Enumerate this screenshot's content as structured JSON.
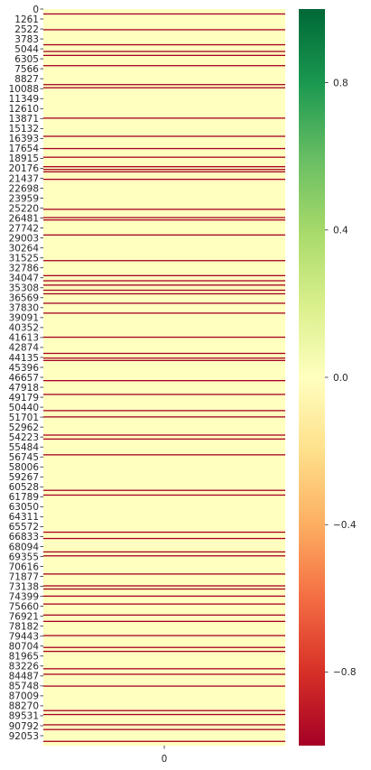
{
  "chart_data": {
    "type": "heatmap",
    "title": "",
    "xlabel": "",
    "ylabel": "",
    "columns": [
      "0"
    ],
    "row_count": 93314,
    "y_tick_step": 1261,
    "y_tick_labels": [
      "0",
      "1261",
      "2522",
      "3783",
      "5044",
      "6305",
      "7566",
      "8827",
      "10088",
      "11349",
      "12610",
      "13871",
      "15132",
      "16393",
      "17654",
      "18915",
      "20176",
      "21437",
      "22698",
      "23959",
      "25220",
      "26481",
      "27742",
      "29003",
      "30264",
      "31525",
      "32786",
      "34047",
      "35308",
      "36569",
      "37830",
      "39091",
      "40352",
      "41613",
      "42874",
      "44135",
      "45396",
      "46657",
      "47918",
      "49179",
      "50440",
      "51701",
      "52962",
      "54223",
      "55484",
      "56745",
      "58006",
      "59267",
      "60528",
      "61789",
      "63050",
      "64311",
      "65572",
      "66833",
      "68094",
      "69355",
      "70616",
      "71877",
      "73138",
      "74399",
      "75660",
      "76921",
      "78182",
      "79443",
      "80704",
      "81965",
      "83226",
      "84487",
      "85748",
      "87009",
      "88270",
      "89531",
      "90792",
      "92053"
    ],
    "background_value": 0.0,
    "colormap": "RdYlGn",
    "vmin": -1.0,
    "vmax": 1.0,
    "colorbar_ticks": [
      {
        "value": 0.8,
        "label": "0.8"
      },
      {
        "value": 0.4,
        "label": "0.4"
      },
      {
        "value": 0.0,
        "label": "0.0"
      },
      {
        "value": -0.4,
        "label": "−0.4"
      },
      {
        "value": -0.8,
        "label": "−0.8"
      }
    ],
    "highlight_value": -1.0,
    "highlight_rows": [
      550,
      2550,
      4450,
      5300,
      5800,
      7100,
      9500,
      9900,
      13750,
      16050,
      17600,
      18700,
      19900,
      20250,
      20550,
      21500,
      25300,
      26350,
      26650,
      28550,
      31800,
      33700,
      34350,
      34900,
      35550,
      36000,
      37200,
      38450,
      41500,
      43550,
      44150,
      44450,
      47000,
      48750,
      50800,
      51600,
      53900,
      54400,
      56400,
      60900,
      61500,
      66200,
      67000,
      68700,
      69200,
      71500,
      73000,
      73400,
      74300,
      75300,
      76700,
      77500,
      79300,
      80800,
      81300,
      83500,
      84200,
      85700,
      88800,
      89300,
      90600,
      91200,
      92700
    ]
  }
}
